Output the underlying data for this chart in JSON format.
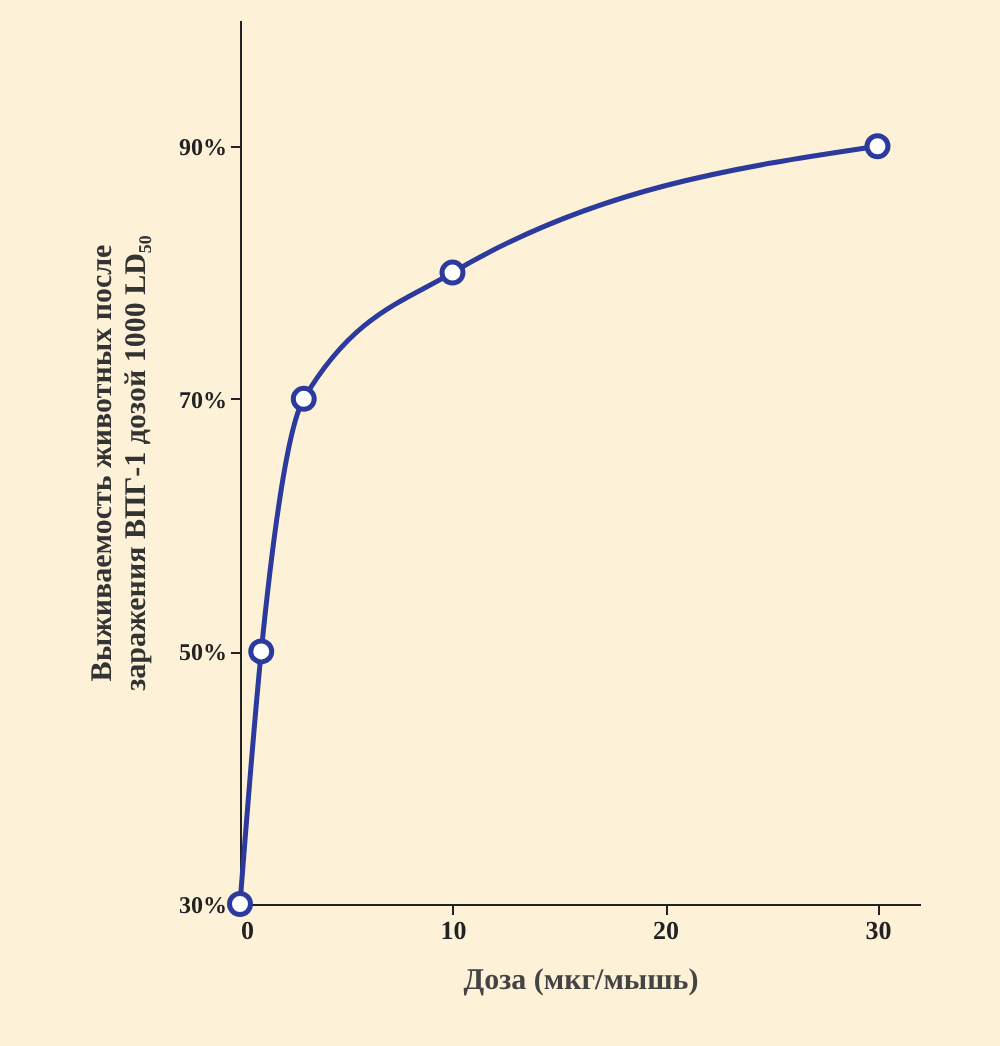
{
  "chart_data": {
    "type": "line",
    "xlabel": "Доза (мкг/мышь)",
    "ylabel": "Выживаемость животных после\nзаражения ВПГ-1 дозой 1000 LD₅₀",
    "x": [
      0,
      1,
      3,
      10,
      30
    ],
    "series": [
      {
        "color": "#2b3a9c",
        "values": [
          30,
          50,
          70,
          80,
          90
        ]
      }
    ],
    "xlim": [
      0,
      32
    ],
    "xticks": [
      0,
      10,
      20,
      30
    ],
    "ylim": [
      30,
      100
    ],
    "yticks": [
      {
        "value": 30,
        "label": "30%"
      },
      {
        "value": 50,
        "label": "50%"
      },
      {
        "value": 70,
        "label": "70%"
      },
      {
        "value": 90,
        "label": "90%"
      }
    ],
    "grid": false,
    "marker": "circle",
    "line_style": "solid"
  }
}
